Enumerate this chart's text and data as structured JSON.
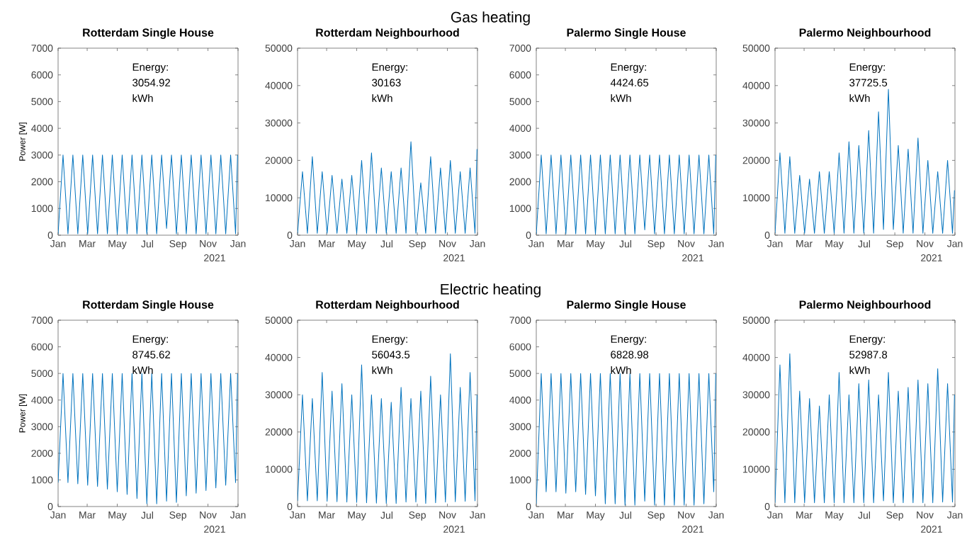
{
  "chart_data": [
    {
      "type": "line",
      "title": "Rotterdam Single House",
      "ylabel": "Power [W]",
      "xlabel": "2021",
      "annotations": [
        "Gas heating",
        "Energy: 3054.92 kWh"
      ],
      "color": "#0072bd",
      "xlim": [
        "2021-01-01",
        "2022-01-01"
      ],
      "xticks": [
        {
          "value": "2021-01-01",
          "label": "Jan"
        },
        {
          "value": "2021-03-01",
          "label": "Mar"
        },
        {
          "value": "2021-05-01",
          "label": "May"
        },
        {
          "value": "2021-07-01",
          "label": "Jul"
        },
        {
          "value": "2021-09-01",
          "label": "Sep"
        },
        {
          "value": "2021-11-01",
          "label": "Nov"
        },
        {
          "value": "2022-01-01",
          "label": "Jan"
        }
      ],
      "ylim": [
        0,
        7000
      ],
      "yticks": [
        0,
        1000,
        2000,
        3000,
        4000,
        5000,
        6000,
        7000
      ],
      "x": [
        "2021-01-01",
        "2021-01-11",
        "2021-01-21",
        "2021-01-31",
        "2021-02-10",
        "2021-02-20",
        "2021-03-02",
        "2021-03-12",
        "2021-03-22",
        "2021-04-01",
        "2021-04-11",
        "2021-04-21",
        "2021-05-01",
        "2021-05-11",
        "2021-05-21",
        "2021-05-31",
        "2021-06-10",
        "2021-06-20",
        "2021-06-30",
        "2021-07-10",
        "2021-07-20",
        "2021-07-30",
        "2021-08-09",
        "2021-08-19",
        "2021-08-29",
        "2021-09-08",
        "2021-09-18",
        "2021-09-28",
        "2021-10-08",
        "2021-10-18",
        "2021-10-28",
        "2021-11-07",
        "2021-11-17",
        "2021-11-27",
        "2021-12-07",
        "2021-12-17",
        "2021-12-27",
        "2021-12-31"
      ],
      "values": [
        50,
        3000,
        50,
        3000,
        50,
        3000,
        50,
        3000,
        50,
        3000,
        50,
        3000,
        50,
        3000,
        50,
        3000,
        50,
        3000,
        50,
        3000,
        50,
        3000,
        250,
        3000,
        50,
        3000,
        50,
        3000,
        50,
        3000,
        50,
        3000,
        50,
        3000,
        50,
        3000,
        50,
        3000
      ]
    },
    {
      "type": "line",
      "title": "Rotterdam Neighbourhood",
      "xlabel": "2021",
      "annotations": [
        "Energy: 30163 kWh"
      ],
      "color": "#0072bd",
      "xlim": [
        "2021-01-01",
        "2022-01-01"
      ],
      "xticks": [
        {
          "value": "2021-01-01",
          "label": "Jan"
        },
        {
          "value": "2021-03-01",
          "label": "Mar"
        },
        {
          "value": "2021-05-01",
          "label": "May"
        },
        {
          "value": "2021-07-01",
          "label": "Jul"
        },
        {
          "value": "2021-09-01",
          "label": "Sep"
        },
        {
          "value": "2021-11-01",
          "label": "Nov"
        },
        {
          "value": "2022-01-01",
          "label": "Jan"
        }
      ],
      "ylim": [
        0,
        50000
      ],
      "yticks": [
        0,
        10000,
        20000,
        30000,
        40000,
        50000
      ],
      "x": [
        "2021-01-01",
        "2021-01-11",
        "2021-01-21",
        "2021-01-31",
        "2021-02-10",
        "2021-02-20",
        "2021-03-02",
        "2021-03-12",
        "2021-03-22",
        "2021-04-01",
        "2021-04-11",
        "2021-04-21",
        "2021-05-01",
        "2021-05-11",
        "2021-05-21",
        "2021-05-31",
        "2021-06-10",
        "2021-06-20",
        "2021-06-30",
        "2021-07-10",
        "2021-07-20",
        "2021-07-30",
        "2021-08-09",
        "2021-08-19",
        "2021-08-29",
        "2021-09-08",
        "2021-09-18",
        "2021-09-28",
        "2021-10-08",
        "2021-10-18",
        "2021-10-28",
        "2021-11-07",
        "2021-11-17",
        "2021-11-27",
        "2021-12-07",
        "2021-12-17",
        "2021-12-27",
        "2021-12-31"
      ],
      "values": [
        500,
        17000,
        500,
        21000,
        500,
        17000,
        500,
        16000,
        500,
        15000,
        500,
        16000,
        500,
        20000,
        500,
        22000,
        500,
        18000,
        500,
        17000,
        500,
        18000,
        500,
        25000,
        500,
        14000,
        500,
        21000,
        500,
        18000,
        500,
        20000,
        500,
        17000,
        500,
        18000,
        500,
        23000
      ]
    },
    {
      "type": "line",
      "title": "Palermo Single House",
      "xlabel": "2021",
      "annotations": [
        "Energy: 4424.65 kWh"
      ],
      "color": "#0072bd",
      "xlim": [
        "2021-01-01",
        "2022-01-01"
      ],
      "xticks": [
        {
          "value": "2021-01-01",
          "label": "Jan"
        },
        {
          "value": "2021-03-01",
          "label": "Mar"
        },
        {
          "value": "2021-05-01",
          "label": "May"
        },
        {
          "value": "2021-07-01",
          "label": "Jul"
        },
        {
          "value": "2021-09-01",
          "label": "Sep"
        },
        {
          "value": "2021-11-01",
          "label": "Nov"
        },
        {
          "value": "2022-01-01",
          "label": "Jan"
        }
      ],
      "ylim": [
        0,
        7000
      ],
      "yticks": [
        0,
        1000,
        2000,
        3000,
        4000,
        5000,
        6000,
        7000
      ],
      "x": [
        "2021-01-01",
        "2021-01-11",
        "2021-01-21",
        "2021-01-31",
        "2021-02-10",
        "2021-02-20",
        "2021-03-02",
        "2021-03-12",
        "2021-03-22",
        "2021-04-01",
        "2021-04-11",
        "2021-04-21",
        "2021-05-01",
        "2021-05-11",
        "2021-05-21",
        "2021-05-31",
        "2021-06-10",
        "2021-06-20",
        "2021-06-30",
        "2021-07-10",
        "2021-07-20",
        "2021-07-30",
        "2021-08-09",
        "2021-08-19",
        "2021-08-29",
        "2021-09-08",
        "2021-09-18",
        "2021-09-28",
        "2021-10-08",
        "2021-10-18",
        "2021-10-28",
        "2021-11-07",
        "2021-11-17",
        "2021-11-27",
        "2021-12-07",
        "2021-12-17",
        "2021-12-27",
        "2021-12-31"
      ],
      "values": [
        50,
        3000,
        50,
        3000,
        50,
        3000,
        50,
        3000,
        50,
        3000,
        50,
        3000,
        50,
        3000,
        50,
        3000,
        50,
        3000,
        50,
        3000,
        50,
        3000,
        200,
        3000,
        50,
        3000,
        50,
        3000,
        50,
        3000,
        50,
        3000,
        50,
        3000,
        50,
        3000,
        50,
        3000
      ]
    },
    {
      "type": "line",
      "title": "Palermo Neighbourhood",
      "xlabel": "2021",
      "annotations": [
        "Energy: 37725.5 kWh"
      ],
      "color": "#0072bd",
      "xlim": [
        "2021-01-01",
        "2022-01-01"
      ],
      "xticks": [
        {
          "value": "2021-01-01",
          "label": "Jan"
        },
        {
          "value": "2021-03-01",
          "label": "Mar"
        },
        {
          "value": "2021-05-01",
          "label": "May"
        },
        {
          "value": "2021-07-01",
          "label": "Jul"
        },
        {
          "value": "2021-09-01",
          "label": "Sep"
        },
        {
          "value": "2021-11-01",
          "label": "Nov"
        },
        {
          "value": "2022-01-01",
          "label": "Jan"
        }
      ],
      "ylim": [
        0,
        50000
      ],
      "yticks": [
        0,
        10000,
        20000,
        30000,
        40000,
        50000
      ],
      "x": [
        "2021-01-01",
        "2021-01-11",
        "2021-01-21",
        "2021-01-31",
        "2021-02-10",
        "2021-02-20",
        "2021-03-02",
        "2021-03-12",
        "2021-03-22",
        "2021-04-01",
        "2021-04-11",
        "2021-04-21",
        "2021-05-01",
        "2021-05-11",
        "2021-05-21",
        "2021-05-31",
        "2021-06-10",
        "2021-06-20",
        "2021-06-30",
        "2021-07-10",
        "2021-07-20",
        "2021-07-30",
        "2021-08-09",
        "2021-08-19",
        "2021-08-29",
        "2021-09-08",
        "2021-09-18",
        "2021-09-28",
        "2021-10-08",
        "2021-10-18",
        "2021-10-28",
        "2021-11-07",
        "2021-11-17",
        "2021-11-27",
        "2021-12-07",
        "2021-12-17",
        "2021-12-27",
        "2021-12-31"
      ],
      "values": [
        500,
        22000,
        500,
        21000,
        500,
        16000,
        500,
        15000,
        500,
        17000,
        500,
        17000,
        500,
        22000,
        500,
        25000,
        500,
        24000,
        500,
        28000,
        500,
        33000,
        1500,
        39000,
        1500,
        24000,
        500,
        23000,
        500,
        26000,
        500,
        20000,
        500,
        17000,
        500,
        20000,
        500,
        12000
      ]
    },
    {
      "type": "line",
      "title": "Rotterdam Single House",
      "ylabel": "Power [W]",
      "xlabel": "2021",
      "annotations": [
        "Electric heating",
        "Energy: 8745.62 kWh"
      ],
      "color": "#0072bd",
      "xlim": [
        "2021-01-01",
        "2022-01-01"
      ],
      "xticks": [
        {
          "value": "2021-01-01",
          "label": "Jan"
        },
        {
          "value": "2021-03-01",
          "label": "Mar"
        },
        {
          "value": "2021-05-01",
          "label": "May"
        },
        {
          "value": "2021-07-01",
          "label": "Jul"
        },
        {
          "value": "2021-09-01",
          "label": "Sep"
        },
        {
          "value": "2021-11-01",
          "label": "Nov"
        },
        {
          "value": "2022-01-01",
          "label": "Jan"
        }
      ],
      "ylim": [
        0,
        7000
      ],
      "yticks": [
        0,
        1000,
        2000,
        3000,
        4000,
        5000,
        6000,
        7000
      ],
      "x": [
        "2021-01-01",
        "2021-01-11",
        "2021-01-21",
        "2021-01-31",
        "2021-02-10",
        "2021-02-20",
        "2021-03-02",
        "2021-03-12",
        "2021-03-22",
        "2021-04-01",
        "2021-04-11",
        "2021-04-21",
        "2021-05-01",
        "2021-05-11",
        "2021-05-21",
        "2021-05-31",
        "2021-06-10",
        "2021-06-20",
        "2021-06-30",
        "2021-07-10",
        "2021-07-20",
        "2021-07-30",
        "2021-08-09",
        "2021-08-19",
        "2021-08-29",
        "2021-09-08",
        "2021-09-18",
        "2021-09-28",
        "2021-10-08",
        "2021-10-18",
        "2021-10-28",
        "2021-11-07",
        "2021-11-17",
        "2021-11-27",
        "2021-12-07",
        "2021-12-17",
        "2021-12-27",
        "2021-12-31"
      ],
      "values": [
        900,
        5000,
        900,
        5000,
        850,
        5000,
        800,
        5000,
        750,
        5000,
        650,
        5000,
        550,
        5000,
        450,
        5000,
        300,
        5000,
        100,
        5000,
        100,
        5000,
        200,
        5000,
        150,
        5000,
        400,
        5000,
        500,
        5000,
        600,
        5000,
        700,
        5000,
        800,
        5000,
        900,
        5000
      ]
    },
    {
      "type": "line",
      "title": "Rotterdam Neighbourhood",
      "xlabel": "2021",
      "annotations": [
        "Energy: 56043.5 kWh"
      ],
      "color": "#0072bd",
      "xlim": [
        "2021-01-01",
        "2022-01-01"
      ],
      "xticks": [
        {
          "value": "2021-01-01",
          "label": "Jan"
        },
        {
          "value": "2021-03-01",
          "label": "Mar"
        },
        {
          "value": "2021-05-01",
          "label": "May"
        },
        {
          "value": "2021-07-01",
          "label": "Jul"
        },
        {
          "value": "2021-09-01",
          "label": "Sep"
        },
        {
          "value": "2021-11-01",
          "label": "Nov"
        },
        {
          "value": "2022-01-01",
          "label": "Jan"
        }
      ],
      "ylim": [
        0,
        50000
      ],
      "yticks": [
        0,
        10000,
        20000,
        30000,
        40000,
        50000
      ],
      "x": [
        "2021-01-01",
        "2021-01-11",
        "2021-01-21",
        "2021-01-31",
        "2021-02-10",
        "2021-02-20",
        "2021-03-02",
        "2021-03-12",
        "2021-03-22",
        "2021-04-01",
        "2021-04-11",
        "2021-04-21",
        "2021-05-01",
        "2021-05-11",
        "2021-05-21",
        "2021-05-31",
        "2021-06-10",
        "2021-06-20",
        "2021-06-30",
        "2021-07-10",
        "2021-07-20",
        "2021-07-30",
        "2021-08-09",
        "2021-08-19",
        "2021-08-29",
        "2021-09-08",
        "2021-09-18",
        "2021-09-28",
        "2021-10-08",
        "2021-10-18",
        "2021-10-28",
        "2021-11-07",
        "2021-11-17",
        "2021-11-27",
        "2021-12-07",
        "2021-12-17",
        "2021-12-27",
        "2021-12-31"
      ],
      "values": [
        1500,
        30000,
        1500,
        29000,
        1500,
        36000,
        1400,
        31000,
        1300,
        33000,
        1200,
        30000,
        1100,
        38000,
        1000,
        30000,
        900,
        29000,
        800,
        28000,
        800,
        32000,
        1200,
        29000,
        1200,
        31000,
        800,
        35000,
        1000,
        30000,
        1200,
        41000,
        1300,
        32000,
        1400,
        36000,
        1500,
        30000
      ]
    },
    {
      "type": "line",
      "title": "Palermo Single House",
      "xlabel": "2021",
      "annotations": [
        "Energy: 6828.98 kWh"
      ],
      "color": "#0072bd",
      "xlim": [
        "2021-01-01",
        "2022-01-01"
      ],
      "xticks": [
        {
          "value": "2021-01-01",
          "label": "Jan"
        },
        {
          "value": "2021-03-01",
          "label": "Mar"
        },
        {
          "value": "2021-05-01",
          "label": "May"
        },
        {
          "value": "2021-07-01",
          "label": "Jul"
        },
        {
          "value": "2021-09-01",
          "label": "Sep"
        },
        {
          "value": "2021-11-01",
          "label": "Nov"
        },
        {
          "value": "2022-01-01",
          "label": "Jan"
        }
      ],
      "ylim": [
        0,
        7000
      ],
      "yticks": [
        0,
        1000,
        2000,
        3000,
        4000,
        5000,
        6000,
        7000
      ],
      "x": [
        "2021-01-01",
        "2021-01-11",
        "2021-01-21",
        "2021-01-31",
        "2021-02-10",
        "2021-02-20",
        "2021-03-02",
        "2021-03-12",
        "2021-03-22",
        "2021-04-01",
        "2021-04-11",
        "2021-04-21",
        "2021-05-01",
        "2021-05-11",
        "2021-05-21",
        "2021-05-31",
        "2021-06-10",
        "2021-06-20",
        "2021-06-30",
        "2021-07-10",
        "2021-07-20",
        "2021-07-30",
        "2021-08-09",
        "2021-08-19",
        "2021-08-29",
        "2021-09-08",
        "2021-09-18",
        "2021-09-28",
        "2021-10-08",
        "2021-10-18",
        "2021-10-28",
        "2021-11-07",
        "2021-11-17",
        "2021-11-27",
        "2021-12-07",
        "2021-12-17",
        "2021-12-27",
        "2021-12-31"
      ],
      "values": [
        100,
        5000,
        550,
        5000,
        550,
        5000,
        500,
        5000,
        550,
        5000,
        450,
        5000,
        400,
        5000,
        100,
        5000,
        100,
        5000,
        50,
        5000,
        50,
        5000,
        200,
        5000,
        50,
        5000,
        50,
        5000,
        50,
        5000,
        50,
        5000,
        50,
        5000,
        100,
        5000,
        550,
        5000
      ]
    },
    {
      "type": "line",
      "title": "Palermo Neighbourhood",
      "xlabel": "2021",
      "annotations": [
        "Energy: 52987.8 kWh"
      ],
      "color": "#0072bd",
      "xlim": [
        "2021-01-01",
        "2022-01-01"
      ],
      "xticks": [
        {
          "value": "2021-01-01",
          "label": "Jan"
        },
        {
          "value": "2021-03-01",
          "label": "Mar"
        },
        {
          "value": "2021-05-01",
          "label": "May"
        },
        {
          "value": "2021-07-01",
          "label": "Jul"
        },
        {
          "value": "2021-09-01",
          "label": "Sep"
        },
        {
          "value": "2021-11-01",
          "label": "Nov"
        },
        {
          "value": "2022-01-01",
          "label": "Jan"
        }
      ],
      "ylim": [
        0,
        50000
      ],
      "yticks": [
        0,
        10000,
        20000,
        30000,
        40000,
        50000
      ],
      "x": [
        "2021-01-01",
        "2021-01-11",
        "2021-01-21",
        "2021-01-31",
        "2021-02-10",
        "2021-02-20",
        "2021-03-02",
        "2021-03-12",
        "2021-03-22",
        "2021-04-01",
        "2021-04-11",
        "2021-04-21",
        "2021-05-01",
        "2021-05-11",
        "2021-05-21",
        "2021-05-31",
        "2021-06-10",
        "2021-06-20",
        "2021-06-30",
        "2021-07-10",
        "2021-07-20",
        "2021-07-30",
        "2021-08-09",
        "2021-08-19",
        "2021-08-29",
        "2021-09-08",
        "2021-09-18",
        "2021-09-28",
        "2021-10-08",
        "2021-10-18",
        "2021-10-28",
        "2021-11-07",
        "2021-11-17",
        "2021-11-27",
        "2021-12-07",
        "2021-12-17",
        "2021-12-27",
        "2021-12-31"
      ],
      "values": [
        1000,
        38000,
        1000,
        41000,
        1000,
        31000,
        1000,
        29000,
        1000,
        27000,
        1000,
        30000,
        1000,
        36000,
        1000,
        30000,
        1000,
        33000,
        1000,
        34000,
        1000,
        30000,
        1500,
        36000,
        1000,
        31000,
        1000,
        32000,
        1000,
        34000,
        1000,
        33000,
        1000,
        37000,
        1200,
        33000,
        1200,
        30000
      ]
    }
  ]
}
